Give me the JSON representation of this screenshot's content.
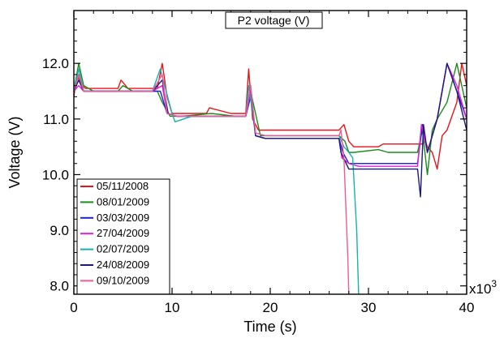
{
  "chart_data": {
    "type": "line",
    "title": "P2 voltage (V)",
    "xlabel": "Time (s)",
    "ylabel": "Voltage (V)",
    "x_multiplier_label": "x10",
    "x_multiplier_exponent": "3",
    "xlim": [
      0,
      40
    ],
    "ylim": [
      7.85,
      12.95
    ],
    "xticks": [
      0,
      10,
      20,
      30,
      40
    ],
    "xtick_labels": [
      "0",
      "10",
      "20",
      "30",
      "40"
    ],
    "yticks": [
      8.0,
      9.0,
      10.0,
      11.0,
      12.0
    ],
    "ytick_labels": [
      "8.0",
      "9.0",
      "10.0",
      "11.0",
      "12.0"
    ],
    "grid": false,
    "legend_position": "bottom-left",
    "series": [
      {
        "name": "05/11/2008",
        "color": "#e8141a",
        "x": [
          0,
          0.3,
          0.8,
          1.2,
          1.8,
          2.0,
          4.5,
          4.8,
          5.5,
          5.8,
          8.5,
          9.0,
          9.5,
          10.0,
          10.5,
          11.0,
          13.5,
          13.8,
          16.0,
          17.5,
          17.8,
          18.2,
          18.8,
          19.5,
          20.0,
          22.5,
          25.0,
          27.0,
          27.5,
          28.0,
          28.5,
          29.0,
          31.0,
          31.5,
          35.5,
          35.8,
          36.0,
          36.5,
          37.0,
          37.5,
          38.0,
          39.0,
          39.5,
          40.0
        ],
        "y": [
          11.4,
          11.8,
          11.6,
          11.55,
          11.55,
          11.55,
          11.55,
          11.7,
          11.55,
          11.55,
          11.55,
          12.0,
          11.4,
          11.1,
          11.1,
          11.1,
          11.1,
          11.2,
          11.1,
          11.1,
          11.9,
          11.0,
          10.8,
          10.8,
          10.8,
          10.8,
          10.8,
          10.8,
          10.9,
          10.6,
          10.5,
          10.5,
          10.5,
          10.55,
          10.55,
          10.6,
          10.5,
          10.4,
          10.1,
          10.7,
          10.8,
          11.3,
          12.0,
          11.6
        ]
      },
      {
        "name": "08/01/2009",
        "color": "#1a8c1a",
        "x": [
          0,
          0.5,
          1.0,
          2.0,
          4.5,
          5.0,
          6.0,
          8.5,
          9.0,
          9.8,
          10.5,
          11.0,
          14.0,
          16.5,
          17.5,
          18.0,
          19.0,
          20.0,
          22.0,
          25.0,
          27.0,
          27.6,
          28.0,
          28.5,
          31.0,
          32.0,
          35.0,
          35.5,
          36.0,
          36.5,
          37.0,
          38.0,
          39.0,
          40.0
        ],
        "y": [
          11.5,
          12.0,
          11.6,
          11.5,
          11.5,
          11.6,
          11.5,
          11.5,
          11.3,
          11.05,
          11.05,
          11.05,
          11.1,
          11.05,
          11.05,
          11.5,
          10.7,
          10.7,
          10.7,
          10.7,
          10.7,
          10.6,
          10.4,
          10.4,
          10.45,
          10.4,
          10.4,
          10.8,
          10.0,
          10.8,
          11.0,
          11.3,
          12.0,
          11.2
        ]
      },
      {
        "name": "03/03/2009",
        "color": "#1f1fd6",
        "x": [
          0,
          0.5,
          1.0,
          2.0,
          5.0,
          8.0,
          8.8,
          9.5,
          10.5,
          12.0,
          15.0,
          17.5,
          18.0,
          18.5,
          19.5,
          22.0,
          25.0,
          27.0,
          27.4,
          28.0,
          29.0,
          31.0,
          32.0,
          35.0,
          35.5,
          36.0,
          37.0,
          38.0,
          39.0,
          40.0
        ],
        "y": [
          11.5,
          11.8,
          11.5,
          11.5,
          11.5,
          11.5,
          11.5,
          11.1,
          11.05,
          11.05,
          11.05,
          11.05,
          11.4,
          10.7,
          10.65,
          10.65,
          10.65,
          10.65,
          10.4,
          10.2,
          10.2,
          10.2,
          10.2,
          10.2,
          10.9,
          10.4,
          11.0,
          12.0,
          11.5,
          11.0
        ]
      },
      {
        "name": "27/04/2009",
        "color": "#e01ee0",
        "x": [
          0,
          0.5,
          1.0,
          3.0,
          5.0,
          8.0,
          9.0,
          9.5,
          10.5,
          13.0,
          16.0,
          17.5,
          18.0,
          18.5,
          19.5,
          22.0,
          25.0,
          27.0,
          27.3,
          28.0,
          29.0,
          31.5,
          33.0,
          35.0,
          35.4,
          36.0,
          37.0,
          38.0,
          39.0,
          40.0
        ],
        "y": [
          11.5,
          11.6,
          11.5,
          11.5,
          11.5,
          11.5,
          11.6,
          11.1,
          11.05,
          11.05,
          11.05,
          11.05,
          11.5,
          10.7,
          10.65,
          10.65,
          10.65,
          10.65,
          10.3,
          10.2,
          10.15,
          10.15,
          10.15,
          10.15,
          10.9,
          10.4,
          11.0,
          12.0,
          11.6,
          11.0
        ]
      },
      {
        "name": "02/07/2009",
        "color": "#18b0b0",
        "x": [
          0,
          0.5,
          1.0,
          3.0,
          5.5,
          8.0,
          8.8,
          10.0,
          10.3,
          12.0,
          14.5,
          17.5,
          17.8,
          18.5,
          19.5,
          22.0,
          25.0,
          27.0,
          27.5,
          28.0,
          28.4,
          28.8,
          29.0
        ],
        "y": [
          11.5,
          11.9,
          11.5,
          11.5,
          11.5,
          11.5,
          11.9,
          11.1,
          10.95,
          11.05,
          11.05,
          11.05,
          11.6,
          10.75,
          10.7,
          10.7,
          10.7,
          10.7,
          10.5,
          10.4,
          10.3,
          9.0,
          7.85
        ]
      },
      {
        "name": "24/08/2009",
        "color": "#1a1a7a",
        "x": [
          0,
          0.5,
          1.0,
          3.0,
          5.0,
          8.0,
          9.0,
          9.6,
          10.5,
          13.0,
          16.0,
          17.5,
          18.0,
          18.5,
          19.5,
          22.0,
          25.0,
          27.0,
          27.2,
          28.0,
          29.0,
          31.5,
          33.0,
          35.0,
          35.3,
          35.6,
          36.0,
          37.0,
          38.0,
          39.0,
          40.0
        ],
        "y": [
          11.5,
          11.7,
          11.5,
          11.5,
          11.5,
          11.5,
          11.7,
          11.1,
          11.05,
          11.05,
          11.05,
          11.05,
          11.6,
          10.7,
          10.65,
          10.65,
          10.65,
          10.65,
          10.4,
          10.1,
          10.1,
          10.1,
          10.1,
          10.1,
          9.6,
          10.9,
          10.4,
          11.0,
          12.0,
          11.5,
          10.8
        ]
      },
      {
        "name": "09/10/2009",
        "color": "#f05a96",
        "x": [
          0,
          0.5,
          1.0,
          3.0,
          5.0,
          8.0,
          9.0,
          9.5,
          10.5,
          13.0,
          16.0,
          17.5,
          18.0,
          18.5,
          19.5,
          22.0,
          25.0,
          27.0,
          27.2,
          27.5,
          27.9,
          28.0
        ],
        "y": [
          11.5,
          11.8,
          11.5,
          11.5,
          11.5,
          11.5,
          11.8,
          11.1,
          11.05,
          11.05,
          11.05,
          11.05,
          11.6,
          10.75,
          10.7,
          10.7,
          10.7,
          10.7,
          10.8,
          10.3,
          8.5,
          7.85
        ]
      }
    ]
  }
}
